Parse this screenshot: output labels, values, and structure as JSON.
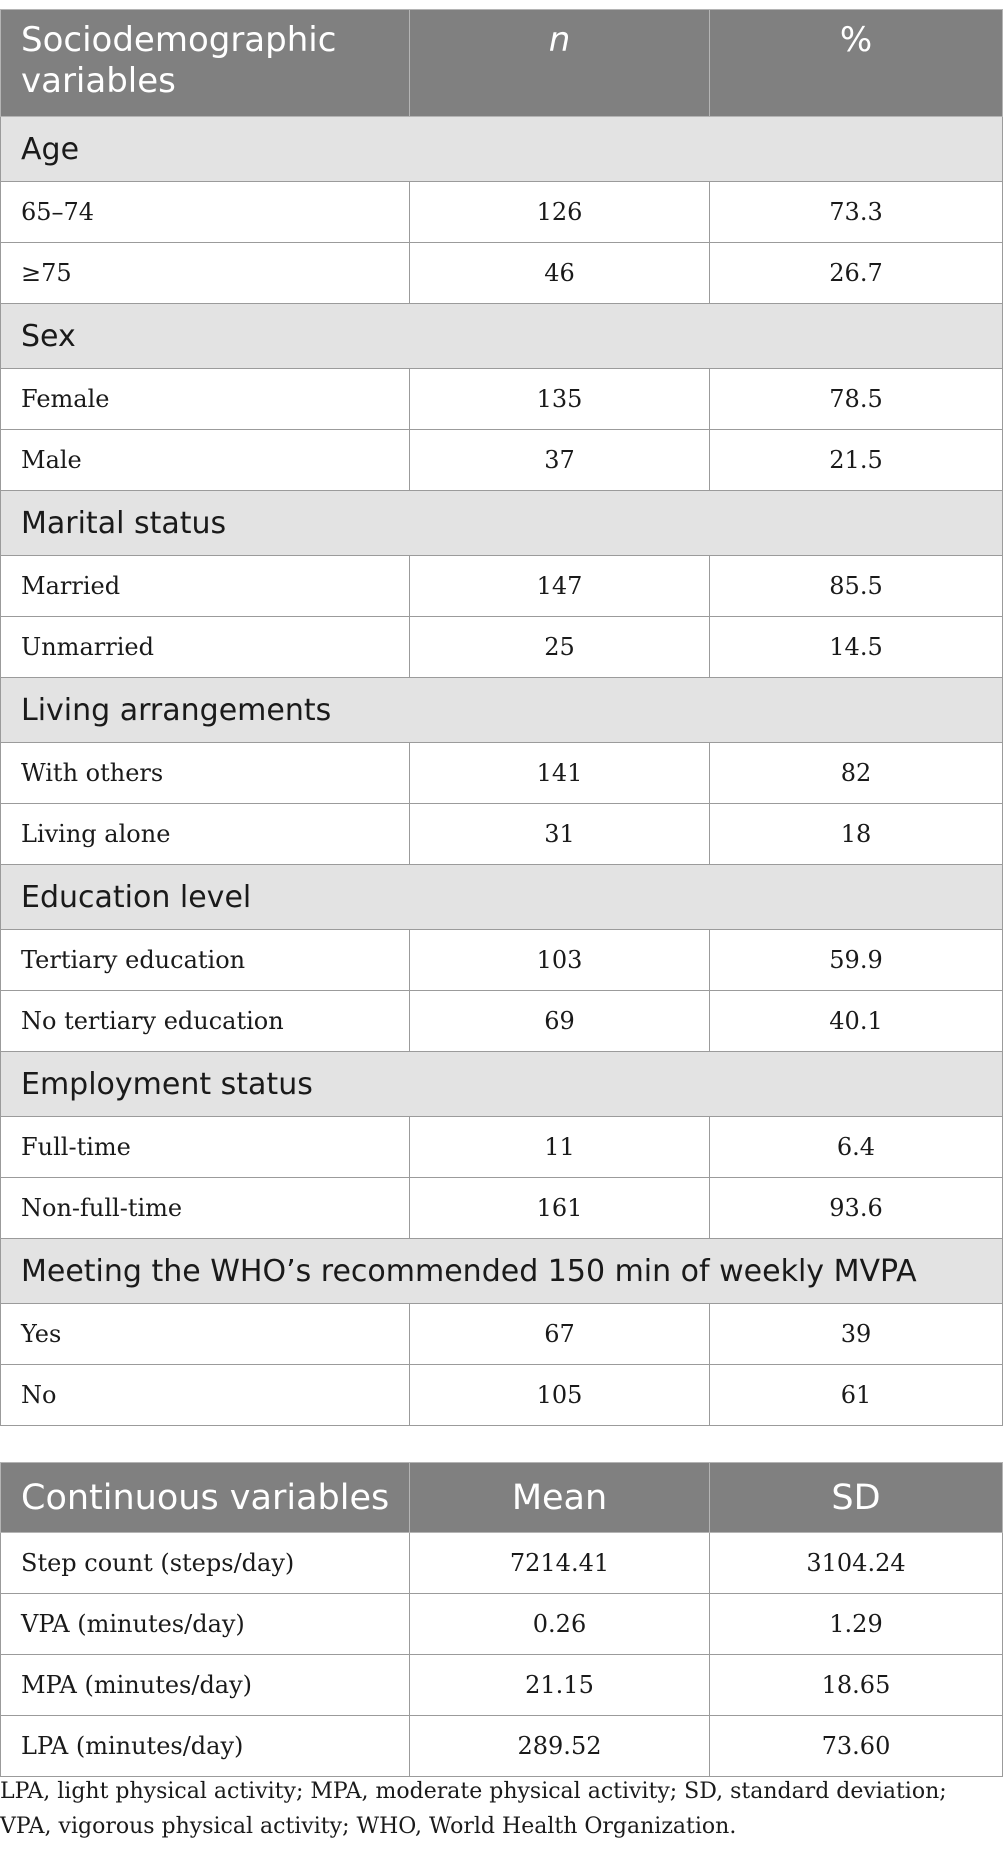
{
  "table1": {
    "headers": [
      "Sociodemographic variables",
      "n",
      "%"
    ],
    "groups": [
      {
        "title": "Age",
        "rows": [
          {
            "label": "65–74",
            "n": "126",
            "pct": "73.3"
          },
          {
            "label": "≥75",
            "n": "46",
            "pct": "26.7"
          }
        ]
      },
      {
        "title": "Sex",
        "rows": [
          {
            "label": "Female",
            "n": "135",
            "pct": "78.5"
          },
          {
            "label": "Male",
            "n": "37",
            "pct": "21.5"
          }
        ]
      },
      {
        "title": "Marital status",
        "rows": [
          {
            "label": "Married",
            "n": "147",
            "pct": "85.5"
          },
          {
            "label": "Unmarried",
            "n": "25",
            "pct": "14.5"
          }
        ]
      },
      {
        "title": "Living arrangements",
        "rows": [
          {
            "label": "With others",
            "n": "141",
            "pct": "82"
          },
          {
            "label": "Living alone",
            "n": "31",
            "pct": "18"
          }
        ]
      },
      {
        "title": "Education level",
        "rows": [
          {
            "label": "Tertiary education",
            "n": "103",
            "pct": "59.9"
          },
          {
            "label": "No tertiary education",
            "n": "69",
            "pct": "40.1"
          }
        ]
      },
      {
        "title": "Employment status",
        "rows": [
          {
            "label": "Full-time",
            "n": "11",
            "pct": "6.4"
          },
          {
            "label": "Non-full-time",
            "n": "161",
            "pct": "93.6"
          }
        ]
      },
      {
        "title": "Meeting the WHO’s recommended 150 min of weekly MVPA",
        "rows": [
          {
            "label": "Yes",
            "n": "67",
            "pct": "39"
          },
          {
            "label": "No",
            "n": "105",
            "pct": "61"
          }
        ]
      }
    ]
  },
  "table2": {
    "headers": [
      "Continuous variables",
      "Mean",
      "SD"
    ],
    "rows": [
      {
        "label": "Step count (steps/day)",
        "mean": "7214.41",
        "sd": "3104.24"
      },
      {
        "label": "VPA (minutes/day)",
        "mean": "0.26",
        "sd": "1.29"
      },
      {
        "label": "MPA (minutes/day)",
        "mean": "21.15",
        "sd": "18.65"
      },
      {
        "label": "LPA (minutes/day)",
        "mean": "289.52",
        "sd": "73.60"
      }
    ]
  },
  "footnote": "LPA, light physical activity; MPA, moderate physical activity; SD, standard deviation; VPA, vigorous physical activity; WHO, World Health Organization."
}
